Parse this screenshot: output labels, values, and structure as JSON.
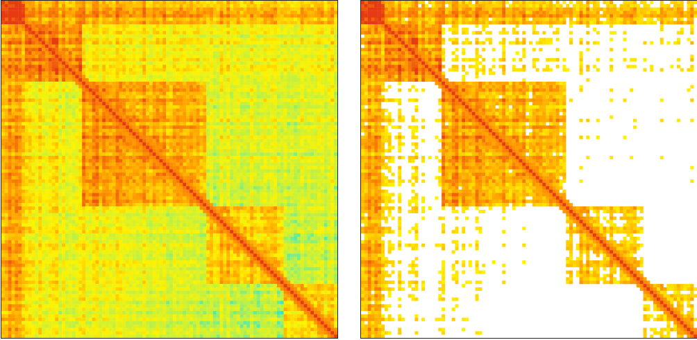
{
  "chart_data": [
    {
      "type": "heatmap",
      "title": "",
      "xlabel": "",
      "ylabel": "",
      "grid": false,
      "legend": "none",
      "colormap": [
        "#00e5ff",
        "#b8f04a",
        "#fff200",
        "#ff9800",
        "#e53a12"
      ],
      "block_boundaries": [
        0,
        7,
        24,
        61,
        84,
        100
      ],
      "diagonal": "high",
      "threshold_mask": false
    },
    {
      "type": "heatmap",
      "title": "",
      "xlabel": "",
      "ylabel": "",
      "grid": false,
      "legend": "none",
      "colormap": [
        "#ffffff",
        "#fff200",
        "#ff9800",
        "#e53a12"
      ],
      "block_boundaries": [
        0,
        7,
        24,
        61,
        84,
        100
      ],
      "diagonal": "high",
      "threshold_mask": true,
      "masked_color": "#ffffff"
    }
  ]
}
